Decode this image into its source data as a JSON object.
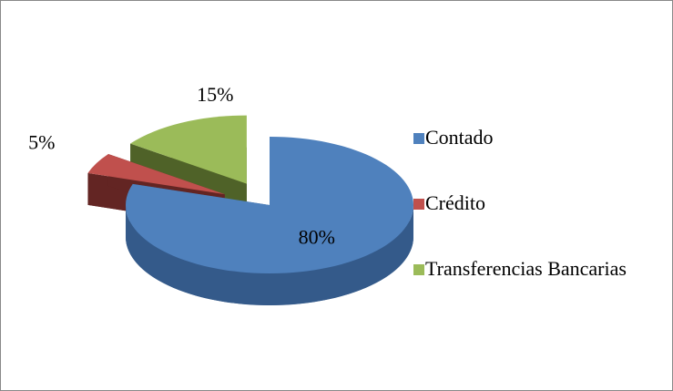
{
  "chart_data": {
    "type": "pie3d",
    "categories": [
      "Contado",
      "Crédito",
      "Transferencias Bancarias"
    ],
    "values": [
      80,
      5,
      15
    ],
    "value_labels": [
      "80%",
      "5%",
      "15%"
    ],
    "colors": [
      "#4f81bd",
      "#c0504d",
      "#9bbb59"
    ],
    "side_colors": [
      "#345a8a",
      "#632523",
      "#4f6228"
    ],
    "legend": "right"
  }
}
